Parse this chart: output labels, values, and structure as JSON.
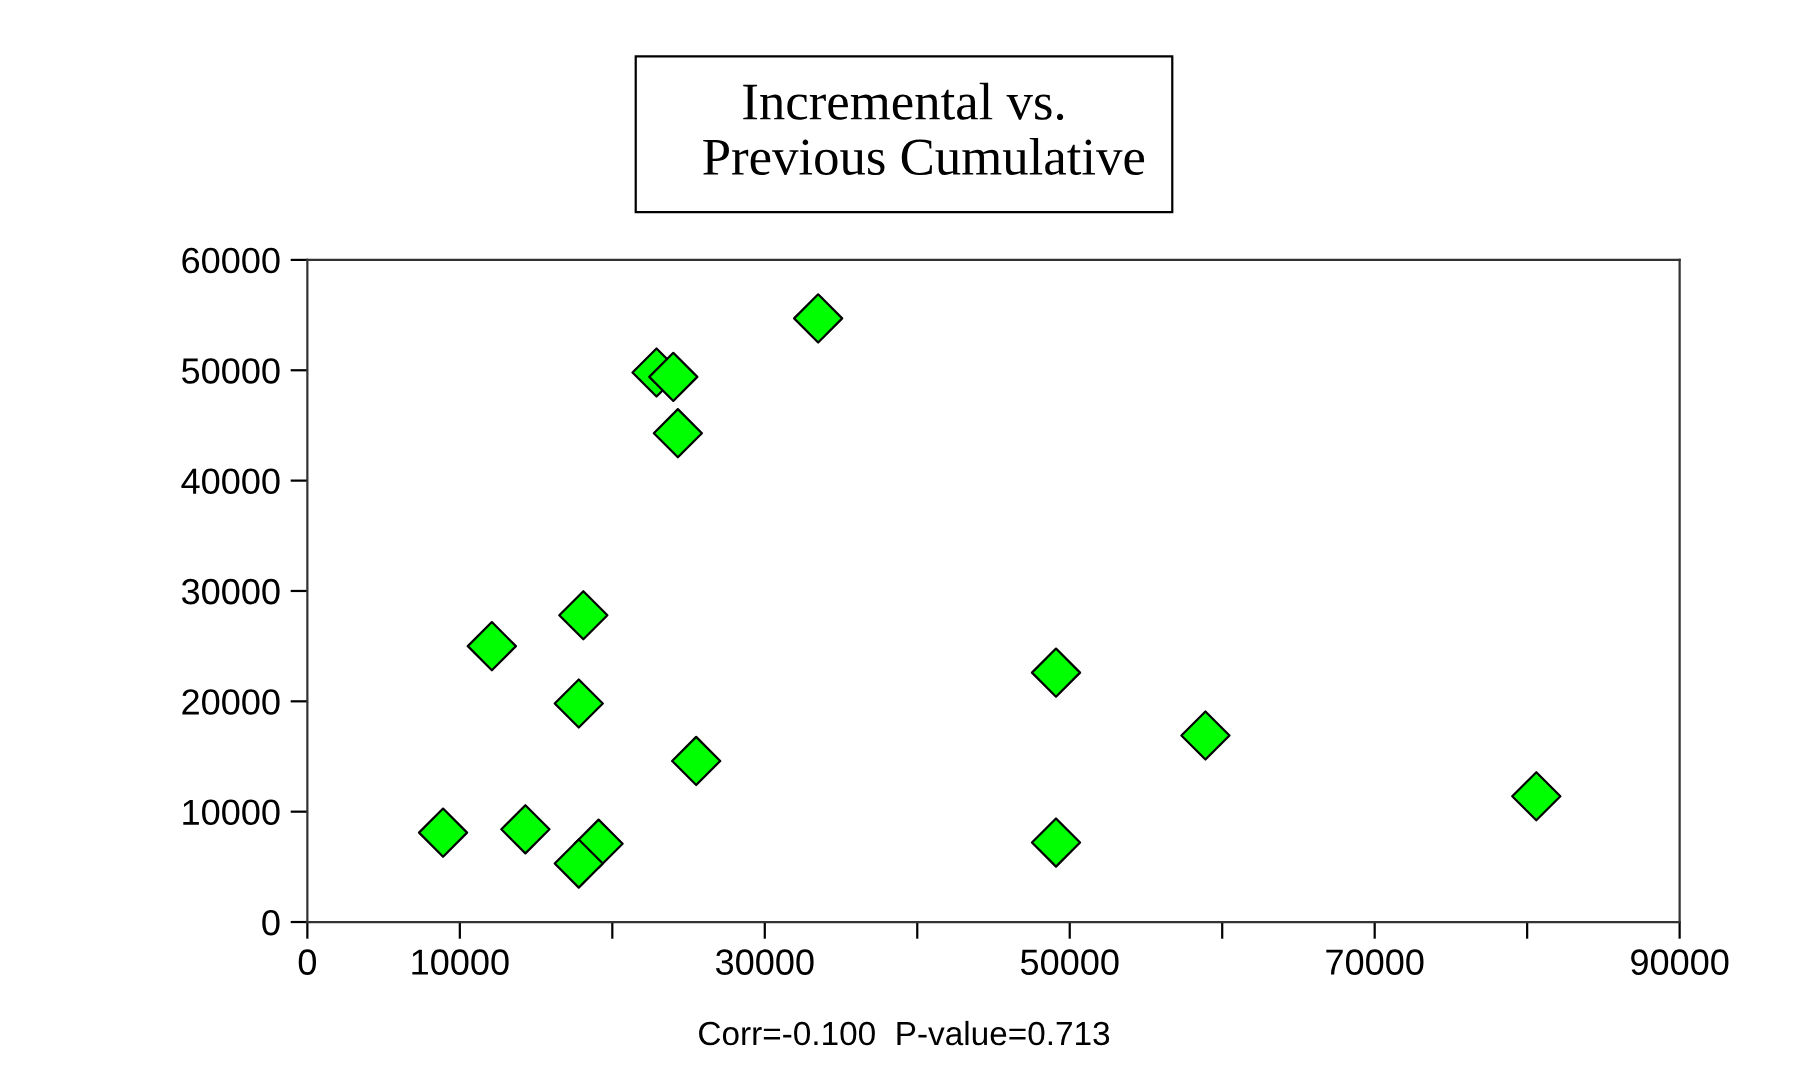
{
  "chart_data": {
    "type": "scatter",
    "title": "Incremental vs.\n   Previous Cumulative",
    "x": [
      33500,
      22900,
      24000,
      24300,
      18100,
      12100,
      17800,
      25500,
      8900,
      14300,
      19100,
      17800,
      49100,
      49100,
      58900,
      80600
    ],
    "values": [
      54700,
      49800,
      49400,
      44300,
      27800,
      25000,
      19800,
      14600,
      8100,
      8400,
      7100,
      5300,
      22600,
      7200,
      16900,
      11400
    ],
    "color": "#00ff00",
    "marker": "diamond",
    "grid": false,
    "xlim": [
      0,
      90000
    ],
    "ylim": [
      0,
      60000
    ],
    "xticks": [
      0,
      10000,
      {
        "value": 20000,
        "label": null
      },
      30000,
      {
        "value": 40000,
        "label": null
      },
      50000,
      {
        "value": 60000,
        "label": null
      },
      70000,
      {
        "value": 80000,
        "label": null
      },
      90000
    ],
    "yticks": [
      0,
      10000,
      20000,
      30000,
      40000,
      50000,
      60000
    ],
    "annotations": [
      "Corr=-0.100  P-value=0.713"
    ]
  }
}
